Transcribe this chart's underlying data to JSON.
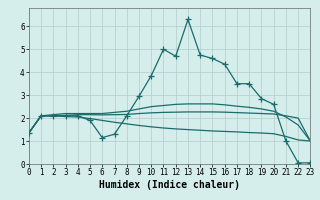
{
  "title": "",
  "xlabel": "Humidex (Indice chaleur)",
  "bg_color": "#d5eeec",
  "grid_color": "#b0cccc",
  "line_color": "#1a6b6b",
  "x_data": [
    0,
    1,
    2,
    3,
    4,
    5,
    6,
    7,
    8,
    9,
    10,
    11,
    12,
    13,
    14,
    15,
    16,
    17,
    18,
    19,
    20,
    21,
    22,
    23
  ],
  "y_main": [
    1.35,
    2.1,
    2.1,
    2.1,
    2.1,
    1.9,
    1.15,
    1.3,
    2.1,
    2.95,
    3.85,
    5.0,
    4.7,
    6.3,
    4.75,
    4.6,
    4.35,
    3.5,
    3.5,
    2.85,
    2.6,
    1.0,
    0.05,
    0.05
  ],
  "y_line1": [
    1.35,
    2.1,
    2.15,
    2.2,
    2.2,
    2.2,
    2.2,
    2.25,
    2.3,
    2.4,
    2.5,
    2.55,
    2.6,
    2.62,
    2.62,
    2.62,
    2.58,
    2.52,
    2.47,
    2.4,
    2.3,
    2.05,
    1.7,
    1.0
  ],
  "y_line2": [
    1.35,
    2.1,
    2.1,
    2.12,
    2.15,
    2.15,
    2.14,
    2.15,
    2.16,
    2.2,
    2.23,
    2.25,
    2.26,
    2.27,
    2.27,
    2.27,
    2.26,
    2.24,
    2.22,
    2.2,
    2.18,
    2.1,
    2.0,
    1.0
  ],
  "y_line3": [
    1.35,
    2.1,
    2.1,
    2.07,
    2.05,
    1.98,
    1.9,
    1.82,
    1.75,
    1.68,
    1.62,
    1.57,
    1.53,
    1.5,
    1.47,
    1.44,
    1.42,
    1.4,
    1.37,
    1.35,
    1.32,
    1.2,
    1.05,
    1.0
  ],
  "xlim": [
    0,
    23
  ],
  "ylim": [
    0,
    6.8
  ],
  "yticks": [
    0,
    1,
    2,
    3,
    4,
    5,
    6
  ],
  "xticks": [
    0,
    1,
    2,
    3,
    4,
    5,
    6,
    7,
    8,
    9,
    10,
    11,
    12,
    13,
    14,
    15,
    16,
    17,
    18,
    19,
    20,
    21,
    22,
    23
  ],
  "marker": "+",
  "markersize": 4,
  "linewidth": 0.9
}
